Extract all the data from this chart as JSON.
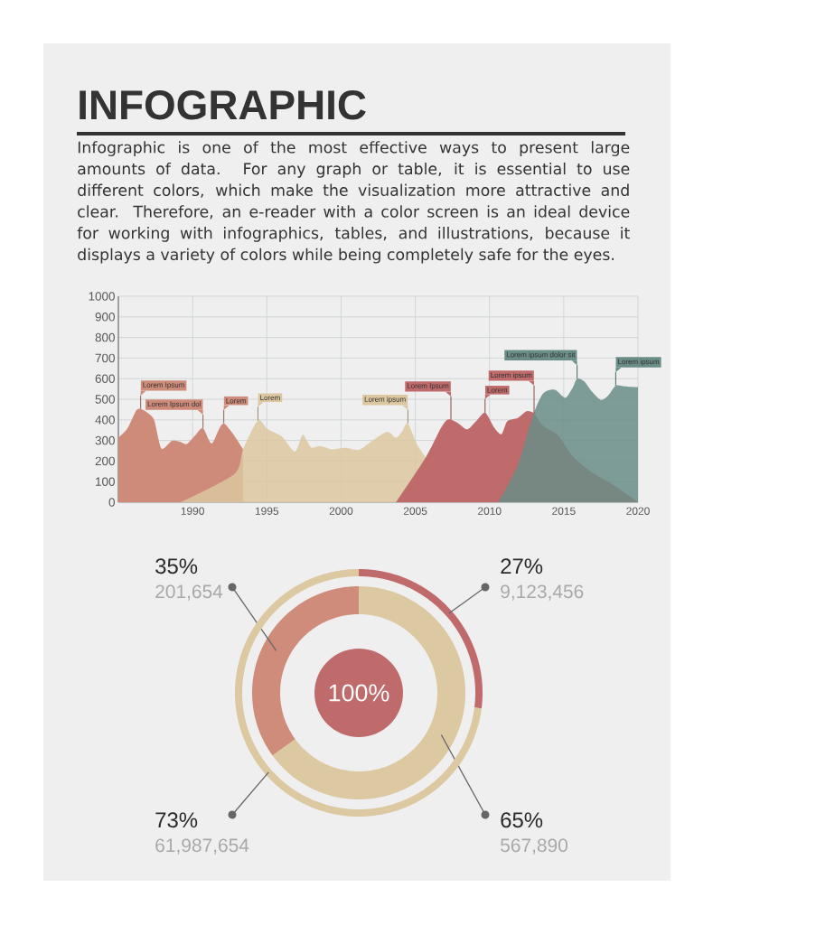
{
  "chart_data": [
    {
      "type": "area",
      "title": "INFOGRAPHIC",
      "subtitle": "Infographic is one of the most effective ways to present large amounts of data. For any graph or table, it is essential to use different colors, which make the visualization more attractive and clear. Therefore, an e-reader with a color screen is an ideal device for working with infographics, tables, and illustrations, because it displays a variety of colors while being completely safe for the eyes.",
      "series": [
        {
          "color": "#cf8b79",
          "x": [
            1985,
            1985.6,
            1986.2,
            1986.5,
            1986.9,
            1987.4,
            1987.9,
            1988.6,
            1989.1,
            1989.6,
            1990.2,
            1990.7,
            1991.3,
            1992.1,
            1993.4
          ],
          "values": [
            313,
            357,
            445,
            453,
            438,
            401,
            261,
            298,
            295,
            283,
            327,
            360,
            286,
            383,
            257
          ]
        },
        {
          "color": "#dcc7a0",
          "x": [
            1989.2,
            1992.8,
            1993.4,
            1994.4,
            1995.0,
            1995.6,
            1996.1,
            1996.9,
            1997.4,
            1997.7,
            1998.0,
            1998.6,
            1999.4,
            2000.3,
            2001.2,
            2002.1,
            2003.1,
            2003.7,
            2004.1,
            2004.5,
            2005.1,
            2005.7
          ],
          "values": [
            0,
            136,
            257,
            398,
            357,
            335,
            313,
            246,
            327,
            298,
            265,
            273,
            257,
            264,
            254,
            298,
            342,
            313,
            342,
            383,
            283,
            217
          ]
        },
        {
          "color": "#bf6a6b",
          "x": [
            2003.7,
            2005.7,
            2006.7,
            2007.1,
            2007.4,
            2007.9,
            2008.5,
            2009.1,
            2009.7,
            2010.3,
            2010.8,
            2011.2,
            2011.9,
            2012.5,
            2013.0,
            2013.6,
            2014.6,
            2015.6,
            2016.8,
            2018.5,
            2020
          ],
          "values": [
            0,
            217,
            357,
            398,
            401,
            383,
            354,
            394,
            435,
            364,
            330,
            394,
            409,
            442,
            431,
            372,
            327,
            224,
            150,
            77,
            0
          ]
        },
        {
          "color": "#6a8d87",
          "x": [
            2010.6,
            2011.9,
            2012.9,
            2013.6,
            2014.4,
            2015.1,
            2015.6,
            2015.9,
            2016.4,
            2016.9,
            2017.5,
            2018.0,
            2018.5,
            2019.1,
            2020
          ],
          "values": [
            0,
            180,
            416,
            527,
            546,
            507,
            556,
            600,
            586,
            537,
            497,
            519,
            566,
            563,
            559
          ]
        }
      ],
      "xlim": [
        1985,
        2020
      ],
      "xticks": [
        1990,
        1995,
        2000,
        2005,
        2010,
        2015,
        2020
      ],
      "ylim": [
        0,
        1000
      ],
      "yticks": [
        0,
        100,
        200,
        300,
        400,
        500,
        600,
        700,
        800,
        900,
        1000
      ],
      "grid": true,
      "annotations": [
        {
          "text": "Lorem Ipsum",
          "x": 1986.5,
          "y": 453
        },
        {
          "text": "Lorem Ipsum dol",
          "x": 1990.7,
          "y": 360
        },
        {
          "text": "Lorem",
          "x": 1992.1,
          "y": 383
        },
        {
          "text": "Lorem",
          "x": 1994.4,
          "y": 398
        },
        {
          "text": "Lorem ipsum",
          "x": 2004.5,
          "y": 383
        },
        {
          "text": "Lorem Ipsum",
          "x": 2007.4,
          "y": 401
        },
        {
          "text": "Lorem",
          "x": 2009.7,
          "y": 435
        },
        {
          "text": "Lorem ipsum",
          "x": 2013.0,
          "y": 431
        },
        {
          "text": "Lorem ipsum dolor sit",
          "x": 2015.9,
          "y": 600
        },
        {
          "text": "Lorem ipsum",
          "x": 2018.5,
          "y": 566
        }
      ]
    },
    {
      "type": "donut",
      "categories": [
        "567,890",
        "201,654"
      ],
      "values": [
        65,
        35
      ],
      "colors": [
        "#dcc8a1",
        "#cf8c7a"
      ],
      "value_labels": [
        "65%",
        "35%"
      ],
      "annotations": [
        "100%"
      ]
    },
    {
      "type": "donut",
      "categories": [
        "9,123,456",
        "61,987,654"
      ],
      "values": [
        27,
        73
      ],
      "colors": [
        "#c06a6c",
        "#dcc8a1"
      ],
      "value_labels": [
        "27%",
        "73%"
      ]
    }
  ]
}
